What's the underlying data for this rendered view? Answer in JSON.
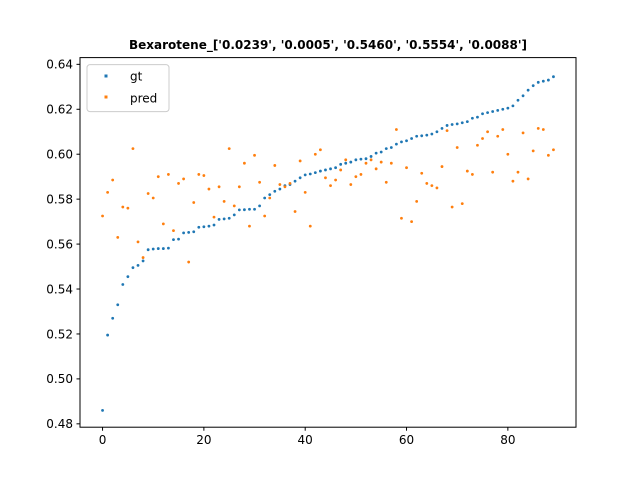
{
  "chart_data": {
    "type": "scatter",
    "title": "Bexarotene_['0.0239', '0.0005', '0.5460', '0.5554', '0.0088']",
    "xlabel": "",
    "ylabel": "",
    "xlim": [
      -4.45,
      93.45
    ],
    "ylim": [
      0.4785,
      0.643
    ],
    "xticks": [
      0,
      20,
      40,
      60,
      80
    ],
    "xtick_labels": [
      "0",
      "20",
      "40",
      "60",
      "80"
    ],
    "yticks": [
      0.48,
      0.5,
      0.52,
      0.54,
      0.56,
      0.58,
      0.6,
      0.62,
      0.64
    ],
    "ytick_labels": [
      "0.48",
      "0.50",
      "0.52",
      "0.54",
      "0.56",
      "0.58",
      "0.60",
      "0.62",
      "0.64"
    ],
    "grid": false,
    "legend_position": "top-left",
    "series": [
      {
        "name": "gt",
        "color": "#1f77b4",
        "x": [
          0,
          1,
          2,
          3,
          4,
          5,
          6,
          7,
          8,
          9,
          10,
          11,
          12,
          13,
          14,
          15,
          16,
          17,
          18,
          19,
          20,
          21,
          22,
          23,
          24,
          25,
          26,
          27,
          28,
          29,
          30,
          31,
          32,
          33,
          34,
          35,
          36,
          37,
          38,
          39,
          40,
          41,
          42,
          43,
          44,
          45,
          46,
          47,
          48,
          49,
          50,
          51,
          52,
          53,
          54,
          55,
          56,
          57,
          58,
          59,
          60,
          61,
          62,
          63,
          64,
          65,
          66,
          67,
          68,
          69,
          70,
          71,
          72,
          73,
          74,
          75,
          76,
          77,
          78,
          79,
          80,
          81,
          82,
          83,
          84,
          85,
          86,
          87,
          88,
          89
        ],
        "y": [
          0.486,
          0.5195,
          0.527,
          0.533,
          0.542,
          0.5455,
          0.5495,
          0.5505,
          0.5525,
          0.5575,
          0.5578,
          0.558,
          0.558,
          0.5582,
          0.562,
          0.5622,
          0.565,
          0.5652,
          0.5655,
          0.5675,
          0.5677,
          0.568,
          0.5685,
          0.571,
          0.5712,
          0.5715,
          0.573,
          0.5752,
          0.5753,
          0.5755,
          0.5755,
          0.577,
          0.5805,
          0.582,
          0.5835,
          0.5845,
          0.586,
          0.5865,
          0.588,
          0.5895,
          0.5908,
          0.5912,
          0.5918,
          0.5925,
          0.593,
          0.5935,
          0.594,
          0.5955,
          0.596,
          0.5965,
          0.5975,
          0.5978,
          0.598,
          0.599,
          0.6005,
          0.601,
          0.6025,
          0.603,
          0.6045,
          0.6055,
          0.606,
          0.607,
          0.608,
          0.6082,
          0.6085,
          0.609,
          0.61,
          0.6115,
          0.6128,
          0.6132,
          0.6135,
          0.614,
          0.6145,
          0.616,
          0.6165,
          0.618,
          0.6185,
          0.619,
          0.6195,
          0.62,
          0.6205,
          0.6215,
          0.624,
          0.626,
          0.6285,
          0.6305,
          0.632,
          0.6325,
          0.633,
          0.6345
        ]
      },
      {
        "name": "pred",
        "color": "#ff7f0e",
        "x": [
          0,
          1,
          2,
          3,
          4,
          5,
          6,
          7,
          8,
          9,
          10,
          11,
          12,
          13,
          14,
          15,
          16,
          17,
          18,
          19,
          20,
          21,
          22,
          23,
          24,
          25,
          26,
          27,
          28,
          29,
          30,
          31,
          32,
          33,
          34,
          35,
          36,
          37,
          38,
          39,
          40,
          41,
          42,
          43,
          44,
          45,
          46,
          47,
          48,
          49,
          50,
          51,
          52,
          53,
          54,
          55,
          56,
          57,
          58,
          59,
          60,
          61,
          62,
          63,
          64,
          65,
          66,
          67,
          68,
          69,
          70,
          71,
          72,
          73,
          74,
          75,
          76,
          77,
          78,
          79,
          80,
          81,
          82,
          83,
          84,
          85,
          86,
          87,
          88,
          89
        ],
        "y": [
          0.5725,
          0.583,
          0.5885,
          0.563,
          0.5765,
          0.576,
          0.6025,
          0.561,
          0.554,
          0.5825,
          0.5805,
          0.59,
          0.569,
          0.591,
          0.566,
          0.587,
          0.589,
          0.552,
          0.5785,
          0.591,
          0.5905,
          0.5845,
          0.572,
          0.5855,
          0.579,
          0.6025,
          0.577,
          0.5855,
          0.596,
          0.568,
          0.5995,
          0.5875,
          0.5725,
          0.5805,
          0.595,
          0.5865,
          0.5855,
          0.587,
          0.5745,
          0.597,
          0.583,
          0.568,
          0.6,
          0.602,
          0.5895,
          0.586,
          0.5885,
          0.593,
          0.5975,
          0.5865,
          0.59,
          0.591,
          0.596,
          0.5975,
          0.5935,
          0.5965,
          0.5875,
          0.596,
          0.611,
          0.5715,
          0.594,
          0.57,
          0.579,
          0.5915,
          0.587,
          0.586,
          0.585,
          0.5945,
          0.6105,
          0.5765,
          0.603,
          0.578,
          0.5925,
          0.591,
          0.604,
          0.607,
          0.61,
          0.592,
          0.608,
          0.611,
          0.6,
          0.588,
          0.592,
          0.6095,
          0.589,
          0.6015,
          0.6115,
          0.611,
          0.5995,
          0.602
        ]
      }
    ]
  }
}
